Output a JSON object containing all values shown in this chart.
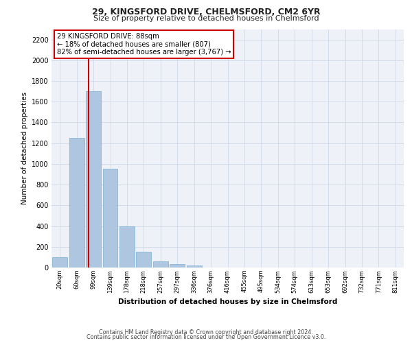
{
  "title1": "29, KINGSFORD DRIVE, CHELMSFORD, CM2 6YR",
  "title2": "Size of property relative to detached houses in Chelmsford",
  "xlabel": "Distribution of detached houses by size in Chelmsford",
  "ylabel": "Number of detached properties",
  "categories": [
    "20sqm",
    "60sqm",
    "99sqm",
    "139sqm",
    "178sqm",
    "218sqm",
    "257sqm",
    "297sqm",
    "336sqm",
    "376sqm",
    "416sqm",
    "455sqm",
    "495sqm",
    "534sqm",
    "574sqm",
    "613sqm",
    "653sqm",
    "692sqm",
    "732sqm",
    "771sqm",
    "811sqm"
  ],
  "values": [
    100,
    1250,
    1700,
    950,
    400,
    150,
    60,
    30,
    20,
    0,
    0,
    0,
    0,
    0,
    0,
    0,
    0,
    0,
    0,
    0,
    0
  ],
  "bar_color": "#aec6df",
  "bar_edge_color": "#7aaed4",
  "vline_color": "#cc0000",
  "annotation_text": "29 KINGSFORD DRIVE: 88sqm\n← 18% of detached houses are smaller (807)\n82% of semi-detached houses are larger (3,767) →",
  "annotation_box_color": "#ffffff",
  "annotation_box_edge": "#cc0000",
  "ylim": [
    0,
    2300
  ],
  "yticks": [
    0,
    200,
    400,
    600,
    800,
    1000,
    1200,
    1400,
    1600,
    1800,
    2000,
    2200
  ],
  "grid_color": "#d0d8e8",
  "bg_color": "#eef2f8",
  "footer1": "Contains HM Land Registry data © Crown copyright and database right 2024.",
  "footer2": "Contains public sector information licensed under the Open Government Licence v3.0."
}
